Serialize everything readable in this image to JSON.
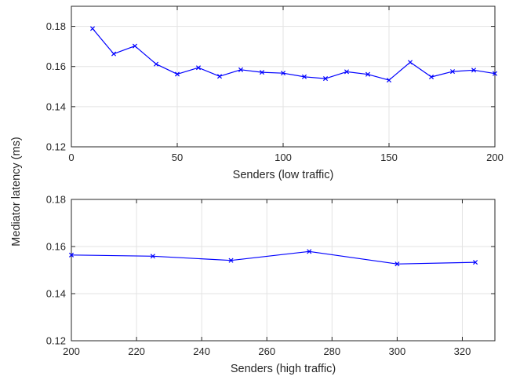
{
  "figure": {
    "shared_ylabel": "Mediator latency (ms)"
  },
  "chart_data": [
    {
      "type": "line",
      "xlabel": "Senders (low traffic)",
      "ylabel": "Mediator latency (ms)",
      "xlim": [
        0,
        200
      ],
      "ylim": [
        0.12,
        0.19
      ],
      "xticks": [
        0,
        50,
        100,
        150,
        200
      ],
      "yticks": [
        0.12,
        0.14,
        0.16,
        0.18
      ],
      "xtick_labels": [
        "0",
        "50",
        "100",
        "150",
        "200"
      ],
      "ytick_labels": [
        "0.12",
        "0.14",
        "0.16",
        "0.18"
      ],
      "grid": true,
      "series": [
        {
          "color": "#0000ff",
          "marker": "x",
          "x": [
            10,
            20,
            30,
            40,
            50,
            60,
            70,
            80,
            90,
            100,
            110,
            120,
            130,
            140,
            150,
            160,
            170,
            180,
            190,
            200
          ],
          "y": [
            0.1789,
            0.1663,
            0.1702,
            0.1612,
            0.1562,
            0.1594,
            0.1551,
            0.1584,
            0.1571,
            0.1567,
            0.1549,
            0.154,
            0.1574,
            0.1561,
            0.1532,
            0.1621,
            0.1548,
            0.1575,
            0.1582,
            0.1565
          ]
        }
      ]
    },
    {
      "type": "line",
      "xlabel": "Senders (high traffic)",
      "ylabel": "Mediator latency (ms)",
      "xlim": [
        200,
        330
      ],
      "ylim": [
        0.12,
        0.18
      ],
      "xticks": [
        200,
        220,
        240,
        260,
        280,
        300,
        320
      ],
      "yticks": [
        0.12,
        0.14,
        0.16,
        0.18
      ],
      "xtick_labels": [
        "200",
        "220",
        "240",
        "260",
        "280",
        "300",
        "320"
      ],
      "ytick_labels": [
        "0.12",
        "0.14",
        "0.16",
        "0.18"
      ],
      "grid": true,
      "series": [
        {
          "color": "#0000ff",
          "marker": "x",
          "x": [
            200,
            225,
            249,
            273,
            300,
            324
          ],
          "y": [
            0.1564,
            0.1559,
            0.1541,
            0.1579,
            0.1526,
            0.1533
          ]
        }
      ]
    }
  ]
}
